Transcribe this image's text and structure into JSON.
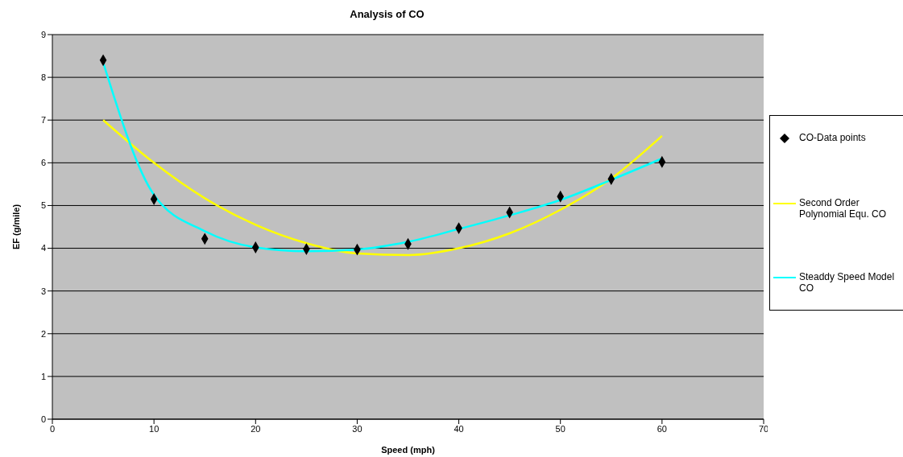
{
  "chart_data": {
    "type": "scatter",
    "title": "Analysis of CO",
    "xlabel": "Speed (mph)",
    "ylabel": "EF (g/mile)",
    "xlim": [
      0,
      70
    ],
    "xticks": [
      0,
      10,
      20,
      30,
      40,
      50,
      60,
      70
    ],
    "ylim": [
      0,
      9
    ],
    "yticks": [
      0,
      1,
      2,
      3,
      4,
      5,
      6,
      7,
      8,
      9
    ],
    "grid": "y",
    "legend": "right",
    "series": [
      {
        "name": "CO-Data points",
        "marker": "diamond",
        "color": "#000000",
        "x": [
          5,
          10,
          15,
          20,
          25,
          30,
          35,
          40,
          45,
          50,
          55,
          60
        ],
        "values": [
          8.4,
          5.15,
          4.22,
          4.02,
          3.98,
          3.97,
          4.1,
          4.47,
          4.84,
          5.21,
          5.62,
          6.02
        ]
      },
      {
        "name": "Second Order Polynomial Equ. CO",
        "type": "line",
        "marker": "none",
        "color": "#ffff00",
        "x": [
          5,
          10,
          15,
          20,
          25,
          30,
          35,
          40,
          45,
          50,
          55,
          60
        ],
        "values": [
          7.0,
          6.0,
          5.17,
          4.55,
          4.12,
          3.88,
          3.84,
          4.0,
          4.35,
          4.9,
          5.63,
          6.63
        ]
      },
      {
        "name": "Steaddy Speed Model CO",
        "type": "line",
        "marker": "none",
        "color": "#00ffff",
        "x": [
          5,
          10,
          15,
          20,
          25,
          30,
          35,
          40,
          45,
          50,
          55,
          60
        ],
        "values": [
          8.35,
          5.25,
          4.4,
          4.02,
          3.93,
          3.97,
          4.15,
          4.45,
          4.77,
          5.13,
          5.6,
          6.1
        ]
      }
    ]
  }
}
